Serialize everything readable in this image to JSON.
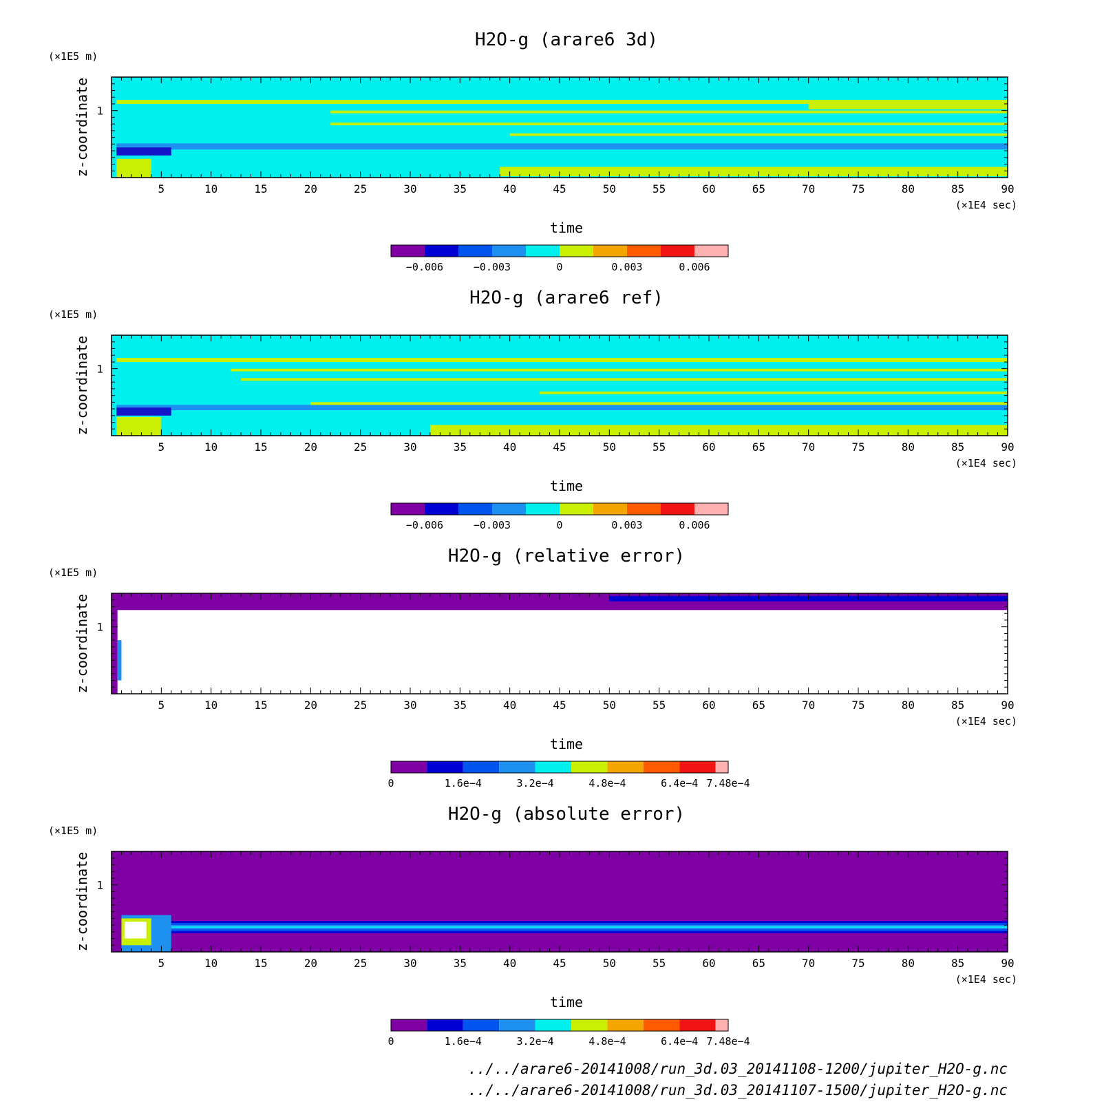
{
  "chart_data": [
    {
      "type": "heatmap",
      "title": "H2O-g (arare6 3d)",
      "xlabel": "time",
      "ylabel": "z-coordinate",
      "x_unit": "(×1E4 sec)",
      "y_unit": "(×1E5 m)",
      "xlim": [
        0,
        90
      ],
      "ylim": [
        0,
        1.5
      ],
      "x_ticks": [
        5,
        10,
        15,
        20,
        25,
        30,
        35,
        40,
        45,
        50,
        55,
        60,
        65,
        70,
        75,
        80,
        85,
        90
      ],
      "y_ticks": [
        1
      ],
      "colorbar": {
        "levels": [
          -0.0075,
          -0.006,
          -0.0045,
          -0.003,
          -0.0015,
          0,
          0.0015,
          0.003,
          0.0045,
          0.006,
          0.0075
        ],
        "colors": [
          "#7f00a5",
          "#0000d4",
          "#0055ee",
          "#1e90f0",
          "#00f0f0",
          "#c8f000",
          "#f5a500",
          "#ff5a00",
          "#f01414",
          "#ffb0b0"
        ],
        "tick_labels": [
          "-0.006",
          "-0.003",
          "0",
          "0.003",
          "0.006"
        ],
        "tick_values": [
          -0.006,
          -0.003,
          0,
          0.003,
          0.006
        ]
      },
      "background_color": "#00f0f0",
      "bands": [
        {
          "x": [
            0.5,
            90
          ],
          "y": [
            0.42,
            0.51
          ],
          "color": "#1e90f0"
        },
        {
          "x": [
            0.5,
            6
          ],
          "y": [
            0.33,
            0.45
          ],
          "color": "#1414c8"
        },
        {
          "x": [
            0.5,
            4
          ],
          "y": [
            0,
            0.28
          ],
          "color": "#c8f000"
        },
        {
          "x": [
            39,
            90
          ],
          "y": [
            0.02,
            0.16
          ],
          "color": "#c8f000"
        },
        {
          "x": [
            0.5,
            70
          ],
          "y": [
            1.1,
            1.16
          ],
          "color": "#c8f000"
        },
        {
          "x": [
            70,
            90
          ],
          "y": [
            1.02,
            1.16
          ],
          "color": "#c8f000"
        },
        {
          "x": [
            22,
            90
          ],
          "y": [
            0.78,
            0.82
          ],
          "color": "#c8f000"
        },
        {
          "x": [
            40,
            90
          ],
          "y": [
            0.62,
            0.66
          ],
          "color": "#c8f000"
        },
        {
          "x": [
            22,
            90
          ],
          "y": [
            0.96,
            1.0
          ],
          "color": "#c8f000"
        }
      ]
    },
    {
      "type": "heatmap",
      "title": "H2O-g (arare6 ref)",
      "xlabel": "time",
      "ylabel": "z-coordinate",
      "x_unit": "(×1E4 sec)",
      "y_unit": "(×1E5 m)",
      "xlim": [
        0,
        90
      ],
      "ylim": [
        0,
        1.5
      ],
      "x_ticks": [
        5,
        10,
        15,
        20,
        25,
        30,
        35,
        40,
        45,
        50,
        55,
        60,
        65,
        70,
        75,
        80,
        85,
        90
      ],
      "y_ticks": [
        1
      ],
      "colorbar": {
        "levels": [
          -0.0075,
          -0.006,
          -0.0045,
          -0.003,
          -0.0015,
          0,
          0.0015,
          0.003,
          0.0045,
          0.006,
          0.0075
        ],
        "colors": [
          "#7f00a5",
          "#0000d4",
          "#0055ee",
          "#1e90f0",
          "#00f0f0",
          "#c8f000",
          "#f5a500",
          "#ff5a00",
          "#f01414",
          "#ffb0b0"
        ],
        "tick_labels": [
          "-0.006",
          "-0.003",
          "0",
          "0.003",
          "0.006"
        ],
        "tick_values": [
          -0.006,
          -0.003,
          0,
          0.003,
          0.006
        ]
      },
      "background_color": "#00f0f0",
      "bands": [
        {
          "x": [
            0.5,
            90
          ],
          "y": [
            0.38,
            0.46
          ],
          "color": "#1e90f0"
        },
        {
          "x": [
            0.5,
            6
          ],
          "y": [
            0.3,
            0.42
          ],
          "color": "#1414c8"
        },
        {
          "x": [
            0.5,
            5
          ],
          "y": [
            0,
            0.28
          ],
          "color": "#c8f000"
        },
        {
          "x": [
            32,
            90
          ],
          "y": [
            0,
            0.16
          ],
          "color": "#c8f000"
        },
        {
          "x": [
            0.5,
            90
          ],
          "y": [
            1.1,
            1.16
          ],
          "color": "#c8f000"
        },
        {
          "x": [
            12,
            90
          ],
          "y": [
            0.96,
            1.0
          ],
          "color": "#c8f000"
        },
        {
          "x": [
            13,
            90
          ],
          "y": [
            0.82,
            0.86
          ],
          "color": "#c8f000"
        },
        {
          "x": [
            43,
            90
          ],
          "y": [
            0.62,
            0.66
          ],
          "color": "#c8f000"
        },
        {
          "x": [
            20,
            90
          ],
          "y": [
            0.46,
            0.5
          ],
          "color": "#c8f000"
        }
      ]
    },
    {
      "type": "heatmap",
      "title": "H2O-g (relative error)",
      "xlabel": "time",
      "ylabel": "z-coordinate",
      "x_unit": "(×1E4 sec)",
      "y_unit": "(×1E5 m)",
      "xlim": [
        0,
        90
      ],
      "ylim": [
        0,
        1.5
      ],
      "x_ticks": [
        5,
        10,
        15,
        20,
        25,
        30,
        35,
        40,
        45,
        50,
        55,
        60,
        65,
        70,
        75,
        80,
        85,
        90
      ],
      "y_ticks": [
        1
      ],
      "colorbar": {
        "levels": [
          0,
          8e-05,
          0.00016,
          0.00024,
          0.00032,
          0.0004,
          0.00048,
          0.00056,
          0.00064,
          0.00072,
          0.000748
        ],
        "colors": [
          "#7f00a5",
          "#0000d4",
          "#0055ee",
          "#1e90f0",
          "#00f0f0",
          "#c8f000",
          "#f5a500",
          "#ff5a00",
          "#f01414",
          "#ffb0b0"
        ],
        "tick_labels": [
          "0",
          "1.6e-4",
          "3.2e-4",
          "4.8e-4",
          "6.4e-4",
          "7.48e-4"
        ],
        "tick_values": [
          0,
          0.00016,
          0.00032,
          0.00048,
          0.00064,
          0.000748
        ]
      },
      "background_color": "#ffffff",
      "bands": [
        {
          "x": [
            0,
            90
          ],
          "y": [
            1.25,
            1.5
          ],
          "color": "#7f00a5"
        },
        {
          "x": [
            0,
            0.6
          ],
          "y": [
            0,
            1.5
          ],
          "color": "#7f00a5"
        },
        {
          "x": [
            50,
            90
          ],
          "y": [
            1.38,
            1.46
          ],
          "color": "#0000d4"
        },
        {
          "x": [
            0.6,
            1
          ],
          "y": [
            0.2,
            0.8
          ],
          "color": "#1e90f0"
        }
      ]
    },
    {
      "type": "heatmap",
      "title": "H2O-g (absolute error)",
      "xlabel": "time",
      "ylabel": "z-coordinate",
      "x_unit": "(×1E4 sec)",
      "y_unit": "(×1E5 m)",
      "xlim": [
        0,
        90
      ],
      "ylim": [
        0,
        1.5
      ],
      "x_ticks": [
        5,
        10,
        15,
        20,
        25,
        30,
        35,
        40,
        45,
        50,
        55,
        60,
        65,
        70,
        75,
        80,
        85,
        90
      ],
      "y_ticks": [
        1
      ],
      "colorbar": {
        "levels": [
          0,
          8e-05,
          0.00016,
          0.00024,
          0.00032,
          0.0004,
          0.00048,
          0.00056,
          0.00064,
          0.00072,
          0.000748
        ],
        "colors": [
          "#7f00a5",
          "#0000d4",
          "#0055ee",
          "#1e90f0",
          "#00f0f0",
          "#c8f000",
          "#f5a500",
          "#ff5a00",
          "#f01414",
          "#ffb0b0"
        ],
        "tick_labels": [
          "0",
          "1.6e-4",
          "3.2e-4",
          "4.8e-4",
          "6.4e-4",
          "7.48e-4"
        ],
        "tick_values": [
          0,
          0.00016,
          0.00032,
          0.00048,
          0.00064,
          0.000748
        ]
      },
      "background_color": "#7f00a5",
      "bands": [
        {
          "x": [
            1,
            90
          ],
          "y": [
            0.28,
            0.46
          ],
          "color": "#0000d4"
        },
        {
          "x": [
            1,
            90
          ],
          "y": [
            0.31,
            0.43
          ],
          "color": "#0055ee"
        },
        {
          "x": [
            1,
            90
          ],
          "y": [
            0.34,
            0.4
          ],
          "color": "#1e90f0"
        },
        {
          "x": [
            3,
            90
          ],
          "y": [
            0.36,
            0.38
          ],
          "color": "#00f0f0"
        },
        {
          "x": [
            1,
            6
          ],
          "y": [
            0,
            0.55
          ],
          "color": "#1e90f0"
        },
        {
          "x": [
            1,
            4
          ],
          "y": [
            0.1,
            0.5
          ],
          "color": "#c8f000"
        },
        {
          "x": [
            1.3,
            3.5
          ],
          "y": [
            0.2,
            0.45
          ],
          "color": "#ffffff"
        }
      ]
    }
  ],
  "footer": {
    "file_1": "../../arare6-20141008/run_3d.03_20141108-1200/jupiter_H2O-g.nc",
    "file_2": "../../arare6-20141008/run_3d.03_20141107-1500/jupiter_H2O-g.nc"
  }
}
